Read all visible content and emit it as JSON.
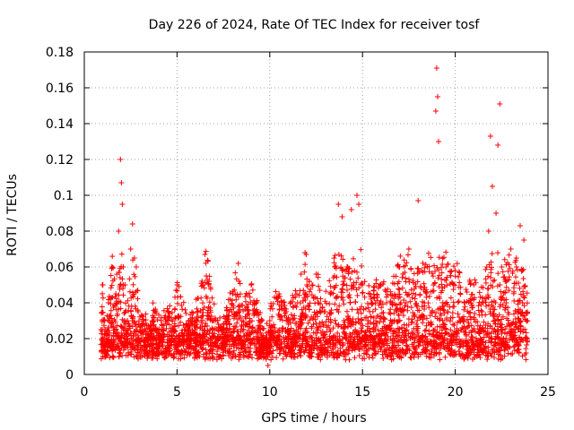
{
  "chart_data": {
    "type": "scatter",
    "title": "Day 226 of 2024, Rate Of TEC Index for receiver tosf",
    "xlabel": "GPS time / hours",
    "ylabel": "ROTI / TECUs",
    "xlim": [
      0,
      25
    ],
    "ylim": [
      0,
      0.18
    ],
    "xticks": [
      0,
      5,
      10,
      15,
      20,
      25
    ],
    "xtick_labels": [
      "0",
      "5",
      "10",
      "15",
      "20",
      "25"
    ],
    "yticks": [
      0,
      0.02,
      0.04,
      0.06,
      0.08,
      0.1,
      0.12,
      0.14,
      0.16,
      0.18
    ],
    "ytick_labels": [
      "0",
      "0.02",
      "0.04",
      "0.06",
      "0.08",
      "0.1",
      "0.12",
      "0.14",
      "0.16",
      "0.18"
    ],
    "grid": true,
    "marker": "+",
    "color": "#ff0000",
    "series": [
      {
        "name": "ROTI",
        "x": [
          0.9,
          1.0,
          1.1,
          1.2,
          1.3,
          1.5,
          1.7,
          1.85,
          1.95,
          2.0,
          2.05,
          2.1,
          2.15,
          2.2,
          2.3,
          2.5,
          2.6,
          2.7,
          2.8,
          2.9,
          3.0,
          3.2,
          3.5,
          3.8,
          4.0,
          4.5,
          4.8,
          5.0,
          5.5,
          6.0,
          6.4,
          6.5,
          7.0,
          7.5,
          8.0,
          8.3,
          8.5,
          9.0,
          9.5,
          9.9,
          10.0,
          10.5,
          11.0,
          11.5,
          11.9,
          12.0,
          12.5,
          13.0,
          13.5,
          13.7,
          13.9,
          14.2,
          14.4,
          14.7,
          14.8,
          15.0,
          15.5,
          16.0,
          16.5,
          17.0,
          17.5,
          17.8,
          18.0,
          18.5,
          18.95,
          19.0,
          19.05,
          19.1,
          19.5,
          20.0,
          20.5,
          21.0,
          21.5,
          21.7,
          21.8,
          21.9,
          22.0,
          22.2,
          22.3,
          22.4,
          22.5,
          23.0,
          23.3,
          23.5,
          23.7,
          23.9
        ],
        "y": [
          0.025,
          0.05,
          0.03,
          0.02,
          0.04,
          0.06,
          0.045,
          0.08,
          0.12,
          0.107,
          0.095,
          0.06,
          0.03,
          0.05,
          0.02,
          0.07,
          0.084,
          0.065,
          0.06,
          0.035,
          0.025,
          0.03,
          0.02,
          0.035,
          0.022,
          0.03,
          0.025,
          0.05,
          0.028,
          0.03,
          0.05,
          0.067,
          0.03,
          0.02,
          0.045,
          0.062,
          0.03,
          0.05,
          0.025,
          0.005,
          0.03,
          0.045,
          0.03,
          0.04,
          0.068,
          0.05,
          0.056,
          0.035,
          0.06,
          0.095,
          0.088,
          0.06,
          0.092,
          0.1,
          0.095,
          0.05,
          0.04,
          0.05,
          0.04,
          0.06,
          0.07,
          0.048,
          0.097,
          0.06,
          0.147,
          0.171,
          0.155,
          0.13,
          0.06,
          0.058,
          0.04,
          0.05,
          0.04,
          0.06,
          0.08,
          0.133,
          0.105,
          0.09,
          0.128,
          0.151,
          0.06,
          0.07,
          0.06,
          0.083,
          0.075,
          0.03
        ]
      }
    ]
  }
}
